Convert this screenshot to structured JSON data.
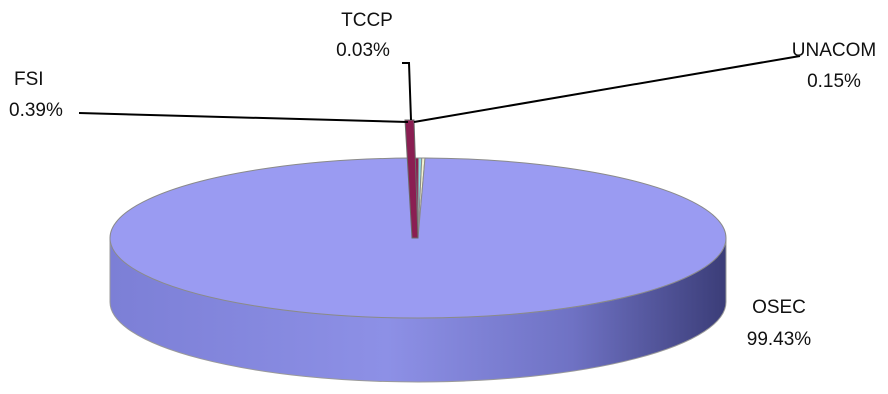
{
  "chart_data": {
    "type": "pie",
    "style": "3d",
    "title": "",
    "legend": "none",
    "slices": [
      {
        "label": "OSEC",
        "value": 99.43,
        "display": "99.43%",
        "color": "#9a9bf2"
      },
      {
        "label": "FSI",
        "value": 0.39,
        "display": "0.39%",
        "color": "#8a1e52"
      },
      {
        "label": "UNACOM",
        "value": 0.15,
        "display": "0.15%",
        "color": "#f2f2d0"
      },
      {
        "label": "TCCP",
        "value": 0.03,
        "display": "0.03%",
        "color": "#8ad8e8"
      }
    ]
  }
}
